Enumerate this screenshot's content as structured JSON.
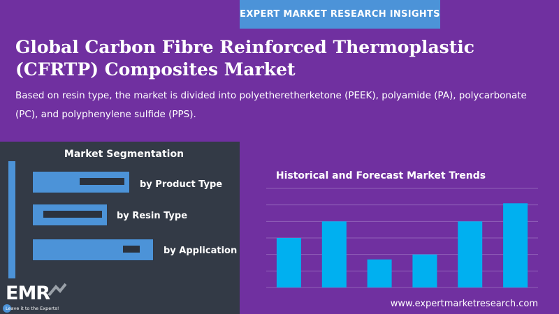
{
  "banner": "EXPERT MARKET RESEARCH INSIGHTS",
  "title": "Global Carbon Fibre Reinforced Thermoplastic (CFRTP) Composites Market",
  "subtitle": "Based on resin type, the market is divided into polyetheretherketone (PEEK), polyamide (PA), polycarbonate (PC), and polyphenylene sulfide (PPS).",
  "segmentation": {
    "title": "Market Segmentation",
    "items": [
      {
        "label": "by Product Type"
      },
      {
        "label": "by Resin Type"
      },
      {
        "label": "by Application"
      }
    ]
  },
  "logo": {
    "text": "EMR",
    "tagline": "Leave it to the Experts!"
  },
  "website": "www.expertmarketresearch.com",
  "colors": {
    "background": "#7030a0",
    "accent": "#4c93d8",
    "panel": "#333a46",
    "bar": "#00b0f0",
    "grid": "#9060b8"
  },
  "chart_data": {
    "type": "bar",
    "title": "Historical and Forecast Market Trends",
    "categories": [
      "",
      "",
      "",
      "",
      "",
      ""
    ],
    "values": [
      3,
      4,
      1.7,
      2,
      4,
      5.1
    ],
    "ylim": [
      0,
      6
    ],
    "grid": true,
    "legend": "none"
  }
}
